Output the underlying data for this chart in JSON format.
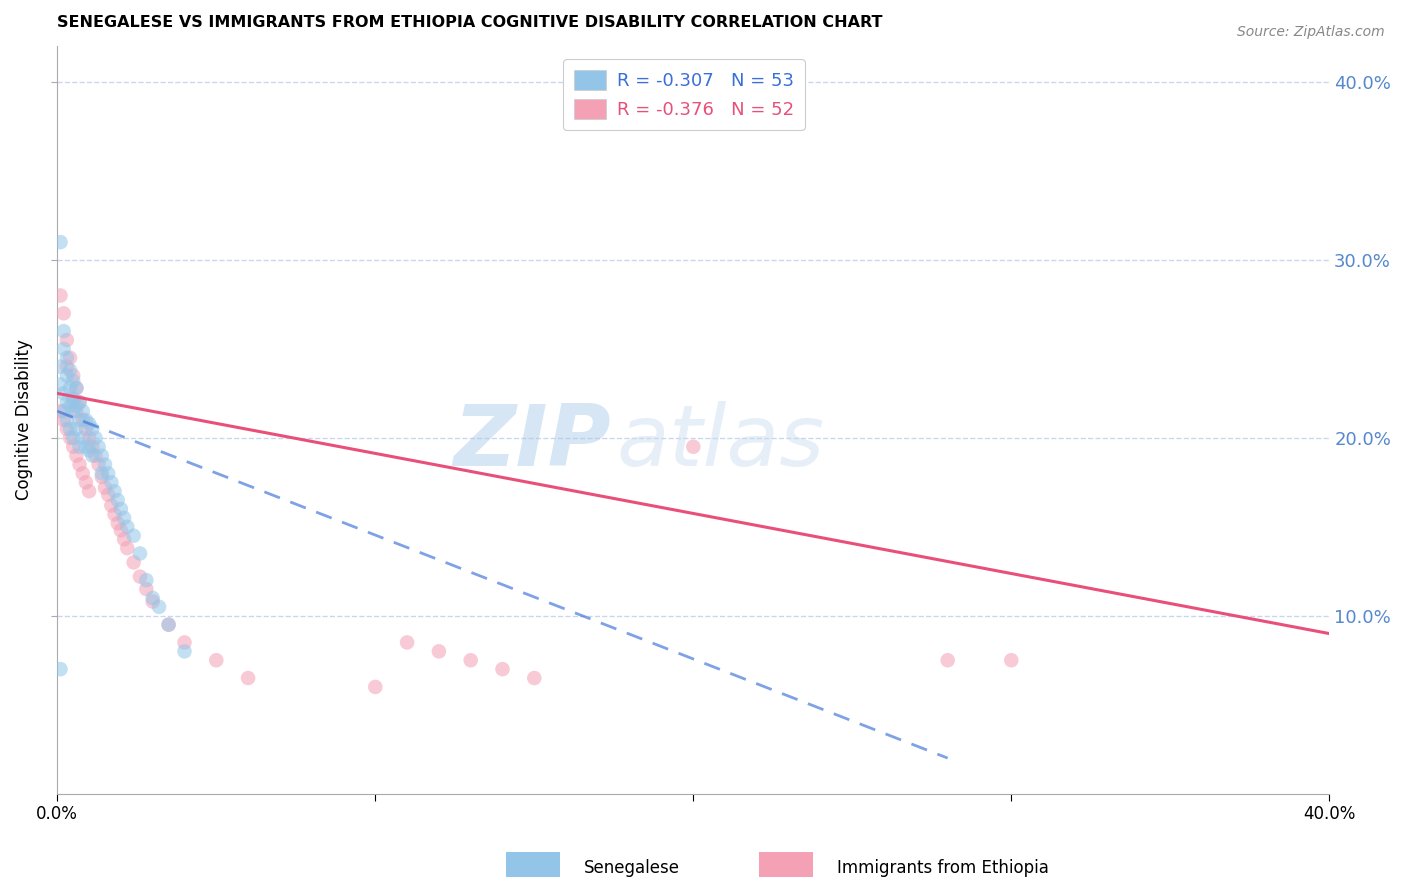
{
  "title": "SENEGALESE VS IMMIGRANTS FROM ETHIOPIA COGNITIVE DISABILITY CORRELATION CHART",
  "source": "Source: ZipAtlas.com",
  "ylabel": "Cognitive Disability",
  "right_yticks": [
    10.0,
    20.0,
    30.0,
    40.0
  ],
  "legend_line1": "R = -0.307   N = 53",
  "legend_line2": "R = -0.376   N = 52",
  "legend_label1": "Senegalese",
  "legend_label2": "Immigrants from Ethiopia",
  "blue_color": "#92C5E8",
  "pink_color": "#F4A0B5",
  "blue_line_color": "#3A6FD8",
  "pink_line_color": "#E8507A",
  "scatter_alpha": 0.55,
  "marker_size": 110,
  "senegalese_x": [
    0.001,
    0.001,
    0.001,
    0.002,
    0.002,
    0.002,
    0.002,
    0.003,
    0.003,
    0.003,
    0.003,
    0.004,
    0.004,
    0.004,
    0.004,
    0.005,
    0.005,
    0.005,
    0.005,
    0.006,
    0.006,
    0.006,
    0.007,
    0.007,
    0.007,
    0.008,
    0.008,
    0.009,
    0.009,
    0.01,
    0.01,
    0.011,
    0.011,
    0.012,
    0.013,
    0.014,
    0.014,
    0.015,
    0.016,
    0.017,
    0.018,
    0.019,
    0.02,
    0.021,
    0.022,
    0.024,
    0.026,
    0.028,
    0.03,
    0.032,
    0.035,
    0.04,
    0.001
  ],
  "senegalese_y": [
    0.31,
    0.24,
    0.23,
    0.26,
    0.25,
    0.225,
    0.215,
    0.245,
    0.235,
    0.22,
    0.21,
    0.238,
    0.228,
    0.218,
    0.205,
    0.232,
    0.222,
    0.215,
    0.2,
    0.228,
    0.218,
    0.205,
    0.22,
    0.21,
    0.195,
    0.215,
    0.2,
    0.21,
    0.195,
    0.208,
    0.193,
    0.205,
    0.19,
    0.2,
    0.195,
    0.19,
    0.18,
    0.185,
    0.18,
    0.175,
    0.17,
    0.165,
    0.16,
    0.155,
    0.15,
    0.145,
    0.135,
    0.12,
    0.11,
    0.105,
    0.095,
    0.08,
    0.07
  ],
  "ethiopia_x": [
    0.001,
    0.001,
    0.002,
    0.002,
    0.003,
    0.003,
    0.003,
    0.004,
    0.004,
    0.005,
    0.005,
    0.005,
    0.006,
    0.006,
    0.006,
    0.007,
    0.007,
    0.008,
    0.008,
    0.009,
    0.009,
    0.01,
    0.01,
    0.011,
    0.012,
    0.013,
    0.014,
    0.015,
    0.016,
    0.017,
    0.018,
    0.019,
    0.02,
    0.021,
    0.022,
    0.024,
    0.026,
    0.028,
    0.03,
    0.035,
    0.04,
    0.05,
    0.06,
    0.1,
    0.11,
    0.12,
    0.13,
    0.14,
    0.15,
    0.2,
    0.28,
    0.3
  ],
  "ethiopia_y": [
    0.28,
    0.215,
    0.27,
    0.21,
    0.255,
    0.24,
    0.205,
    0.245,
    0.2,
    0.235,
    0.22,
    0.195,
    0.228,
    0.215,
    0.19,
    0.22,
    0.185,
    0.21,
    0.18,
    0.205,
    0.175,
    0.2,
    0.17,
    0.195,
    0.19,
    0.185,
    0.178,
    0.172,
    0.168,
    0.162,
    0.157,
    0.152,
    0.148,
    0.143,
    0.138,
    0.13,
    0.122,
    0.115,
    0.108,
    0.095,
    0.085,
    0.075,
    0.065,
    0.06,
    0.085,
    0.08,
    0.075,
    0.07,
    0.065,
    0.195,
    0.075,
    0.075
  ],
  "xlim": [
    0.0,
    0.4
  ],
  "ylim": [
    0.0,
    0.42
  ],
  "sen_line_x": [
    0.0,
    0.28
  ],
  "eth_line_x": [
    0.0,
    0.4
  ],
  "sen_line_y_start": 0.215,
  "sen_line_y_end": 0.02,
  "eth_line_y_start": 0.225,
  "eth_line_y_end": 0.09,
  "watermark_zip": "ZIP",
  "watermark_atlas": "atlas",
  "background_color": "#FFFFFF",
  "grid_color": "#C8D8EC",
  "right_axis_color": "#5588CC"
}
